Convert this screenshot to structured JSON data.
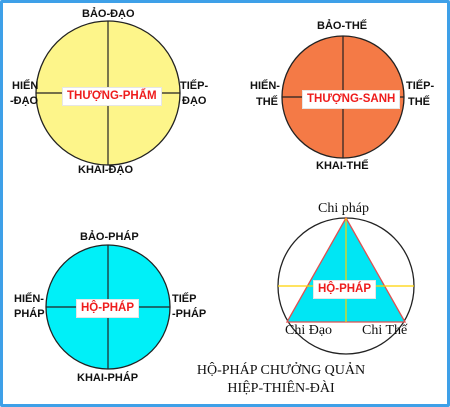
{
  "colors": {
    "frame": "#3ea0e8",
    "thuong_pham_fill": "#fdf58a",
    "thuong_sanh_fill": "#f47a46",
    "ho_phap_fill": "#00f0f8",
    "triangle_fill": "#00e6f4",
    "center_text": "#ee1c1c",
    "triangle_line": "#ffd200",
    "triangle_edge": "#e05050"
  },
  "circle_dao": {
    "center": "THƯỢNG-PHẨM",
    "top": "BẢO-ĐẠO",
    "bottom": "KHAI-ĐẠO",
    "left_line1": "HIẾN",
    "left_line2": "-ĐẠO",
    "right_line1": "TIẾP-",
    "right_line2": "ĐẠO"
  },
  "circle_the": {
    "center": "THƯỢNG-SANH",
    "top": "BẢO-THẾ",
    "bottom": "KHAI-THẾ",
    "left_line1": "HIẾN-",
    "left_line2": "THẾ",
    "right_line1": "TIẾP-",
    "right_line2": "THẾ"
  },
  "circle_phap": {
    "center": "HỘ-PHÁP",
    "top": "BẢO-PHÁP",
    "bottom": "KHAI-PHÁP",
    "left_line1": "HIẾN-",
    "left_line2": "PHÁP",
    "right_line1": "TIẾP",
    "right_line2": "-PHÁP"
  },
  "triangle": {
    "top": "Chi pháp",
    "center": "HỘ-PHÁP",
    "bottom_left": "Chi Đạo",
    "bottom_right": "Chi Thế"
  },
  "caption": {
    "line1": "HỘ-PHÁP CHƯỞNG QUẢN",
    "line2": "HIỆP-THIÊN-ĐÀI"
  }
}
